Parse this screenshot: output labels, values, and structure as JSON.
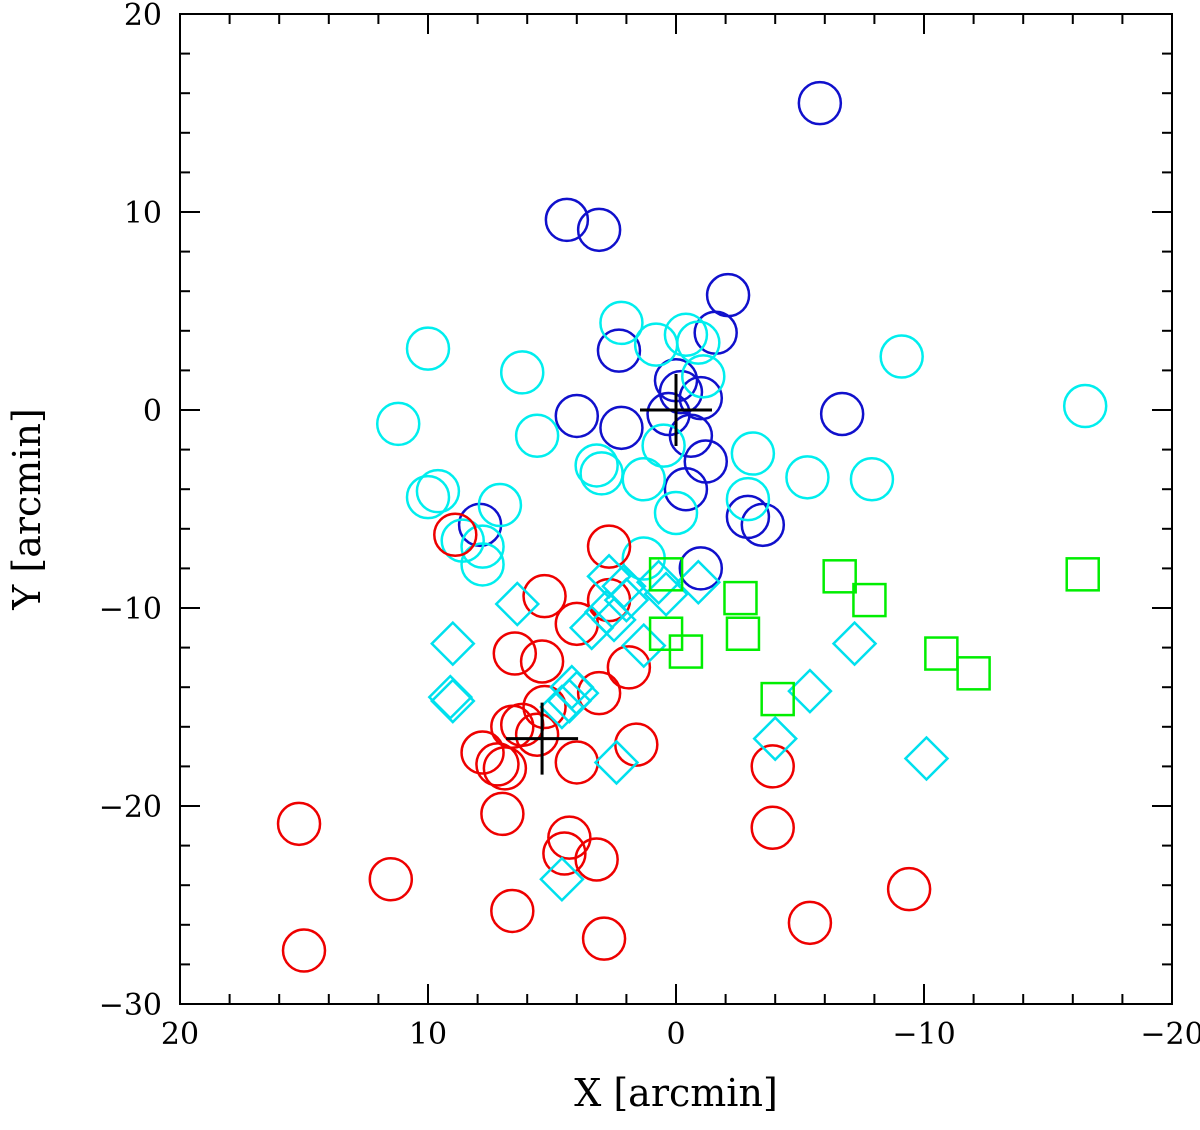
{
  "chart_data": {
    "type": "scatter",
    "title": "",
    "xlabel": "X [arcmin]",
    "ylabel": "Y [arcmin]",
    "xlim": [
      20,
      -20
    ],
    "ylim": [
      -30,
      20
    ],
    "x_ticks": [
      20,
      10,
      0,
      -10,
      -20
    ],
    "x_tick_labels": [
      "20",
      "10",
      "0",
      "−10",
      "−20"
    ],
    "y_ticks": [
      20,
      10,
      0,
      -10,
      -20,
      -30
    ],
    "y_tick_labels": [
      "20",
      "10",
      "0",
      "−10",
      "−20",
      "−30"
    ],
    "series": [
      {
        "name": "blue-circles",
        "marker": "circle",
        "color": "#1010cc",
        "points": [
          [
            -5.8,
            15.5
          ],
          [
            4.4,
            9.6
          ],
          [
            3.1,
            9.1
          ],
          [
            -2.1,
            5.8
          ],
          [
            -1.6,
            3.9
          ],
          [
            2.3,
            3.0
          ],
          [
            0,
            1.5
          ],
          [
            -0.2,
            0.9
          ],
          [
            -1.0,
            0.6
          ],
          [
            4.0,
            -0.3
          ],
          [
            2.2,
            -0.9
          ],
          [
            0.3,
            -0.2
          ],
          [
            -0.6,
            -1.3
          ],
          [
            -1.2,
            -2.6
          ],
          [
            -0.4,
            -4.0
          ],
          [
            -6.7,
            -0.2
          ],
          [
            -2.9,
            -5.4
          ],
          [
            -3.5,
            -5.8
          ],
          [
            -1.0,
            -8.0
          ],
          [
            7.9,
            -5.8
          ]
        ]
      },
      {
        "name": "cyan-circles",
        "marker": "circle",
        "color": "#00eeee",
        "points": [
          [
            -9.1,
            2.7
          ],
          [
            10.0,
            3.1
          ],
          [
            6.2,
            1.9
          ],
          [
            2.2,
            4.4
          ],
          [
            -0.4,
            3.8
          ],
          [
            0.8,
            3.3
          ],
          [
            -0.9,
            3.4
          ],
          [
            -1.1,
            1.7
          ],
          [
            11.2,
            -0.7
          ],
          [
            5.6,
            -1.3
          ],
          [
            0.5,
            -1.8
          ],
          [
            3.2,
            -2.8
          ],
          [
            3.0,
            -3.2
          ],
          [
            1.3,
            -3.5
          ],
          [
            0,
            -5.2
          ],
          [
            -3.1,
            -2.2
          ],
          [
            -5.3,
            -3.4
          ],
          [
            -7.9,
            -3.5
          ],
          [
            -16.5,
            0.2
          ],
          [
            -2.9,
            -4.5
          ],
          [
            10.0,
            -4.4
          ],
          [
            9.6,
            -4.1
          ],
          [
            7.1,
            -4.8
          ],
          [
            8.6,
            -6.6
          ],
          [
            7.8,
            -6.9
          ],
          [
            7.8,
            -7.8
          ],
          [
            1.3,
            -7.5
          ]
        ]
      },
      {
        "name": "red-circles",
        "marker": "circle",
        "color": "#ee0000",
        "points": [
          [
            8.9,
            -6.3
          ],
          [
            2.7,
            -6.9
          ],
          [
            5.3,
            -9.4
          ],
          [
            4.0,
            -10.8
          ],
          [
            2.7,
            -9.6
          ],
          [
            6.5,
            -12.3
          ],
          [
            5.4,
            -12.7
          ],
          [
            1.9,
            -13.0
          ],
          [
            3.1,
            -14.3
          ],
          [
            5.3,
            -15.0
          ],
          [
            6.6,
            -16.0
          ],
          [
            6.2,
            -15.9
          ],
          [
            5.6,
            -16.4
          ],
          [
            7.8,
            -17.3
          ],
          [
            7.2,
            -17.9
          ],
          [
            6.9,
            -18.1
          ],
          [
            4.0,
            -17.8
          ],
          [
            1.6,
            -16.9
          ],
          [
            7.0,
            -20.4
          ],
          [
            4.3,
            -21.6
          ],
          [
            4.5,
            -22.4
          ],
          [
            3.2,
            -22.7
          ],
          [
            15.2,
            -20.9
          ],
          [
            11.5,
            -23.7
          ],
          [
            6.6,
            -25.3
          ],
          [
            2.9,
            -26.7
          ],
          [
            15.0,
            -27.3
          ],
          [
            -3.9,
            -18.0
          ],
          [
            -3.9,
            -21.1
          ],
          [
            -5.4,
            -25.9
          ],
          [
            -9.4,
            -24.2
          ]
        ]
      },
      {
        "name": "cyan-diamonds",
        "marker": "diamond",
        "color": "#00e0ee",
        "points": [
          [
            2.7,
            -8.4
          ],
          [
            2.1,
            -8.9
          ],
          [
            2.0,
            -9.6
          ],
          [
            0.7,
            -8.7
          ],
          [
            0.4,
            -9.3
          ],
          [
            -0.9,
            -8.7
          ],
          [
            6.4,
            -9.8
          ],
          [
            9.0,
            -11.8
          ],
          [
            2.8,
            -10.2
          ],
          [
            2.5,
            -10.6
          ],
          [
            3.4,
            -11.0
          ],
          [
            1.3,
            -11.9
          ],
          [
            9.1,
            -14.5
          ],
          [
            9.0,
            -14.7
          ],
          [
            4.2,
            -14.0
          ],
          [
            4.0,
            -14.3
          ],
          [
            4.3,
            -14.7
          ],
          [
            4.6,
            -15.0
          ],
          [
            2.4,
            -17.8
          ],
          [
            -7.2,
            -11.8
          ],
          [
            -5.4,
            -14.2
          ],
          [
            -4.0,
            -16.6
          ],
          [
            -10.1,
            -17.6
          ],
          [
            4.6,
            -23.7
          ]
        ]
      },
      {
        "name": "green-squares",
        "marker": "square",
        "color": "#00ee00",
        "points": [
          [
            0.4,
            -8.3
          ],
          [
            -6.6,
            -8.4
          ],
          [
            -7.8,
            -9.6
          ],
          [
            -2.6,
            -9.5
          ],
          [
            -16.4,
            -8.3
          ],
          [
            0.4,
            -11.3
          ],
          [
            -0.4,
            -12.2
          ],
          [
            -2.7,
            -11.3
          ],
          [
            -10.7,
            -12.3
          ],
          [
            -12.0,
            -13.3
          ],
          [
            -4.1,
            -14.6
          ]
        ]
      },
      {
        "name": "center-crosses",
        "marker": "cross",
        "color": "#000000",
        "points": [
          [
            0,
            0
          ],
          [
            5.4,
            -16.6
          ]
        ]
      }
    ]
  }
}
